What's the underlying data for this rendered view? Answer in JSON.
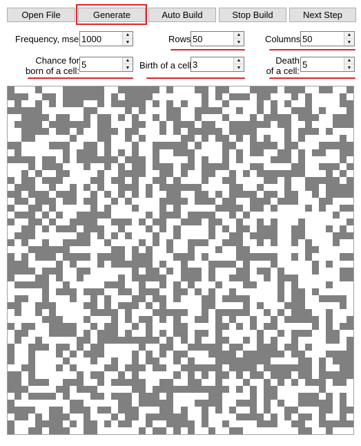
{
  "toolbar": {
    "open_file": "Open File",
    "generate": "Generate",
    "auto_build": "Auto Build",
    "stop_build": "Stop Build",
    "next_step": "Next Step"
  },
  "settings": {
    "frequency": {
      "label": "Frequency, msec:",
      "value": "1000"
    },
    "rows": {
      "label": "Rows:",
      "value": "50"
    },
    "columns": {
      "label": "Columns:",
      "value": "50"
    },
    "chance": {
      "label_line1": "Chance for",
      "label_line2": "born of a cell:",
      "value": "5"
    },
    "birth": {
      "label": "Birth of a cell:",
      "value": "3"
    },
    "death": {
      "label_line1": "Death",
      "label_line2": "of a cell:",
      "value": "5"
    }
  },
  "grid": {
    "rows": 50,
    "columns": 50,
    "alive_color": "#808080",
    "dead_color": "#ffffff",
    "alive_fraction": 0.5
  },
  "annotations": {
    "highlight_color": "#e41e26"
  }
}
